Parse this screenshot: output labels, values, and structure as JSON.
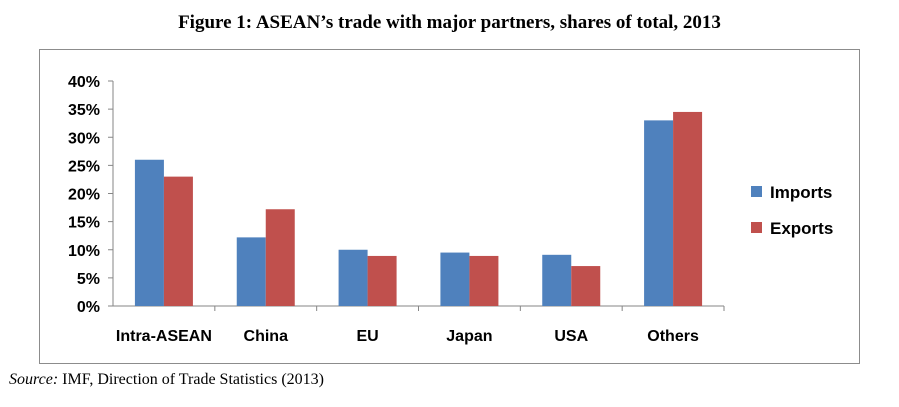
{
  "figure_title": "Figure 1: ASEAN’s trade with major partners, shares of total, 2013",
  "source_label": "Source:",
  "source_text": " IMF, Direction of Trade Statistics (2013)",
  "chart_data": {
    "type": "bar",
    "title": "Figure 1: ASEAN’s trade with major partners, shares of total, 2013",
    "xlabel": "",
    "ylabel": "",
    "categories": [
      "Intra-ASEAN",
      "China",
      "EU",
      "Japan",
      "USA",
      "Others"
    ],
    "series": [
      {
        "name": "Imports",
        "color": "#4f81bd",
        "values": [
          26,
          12.2,
          10,
          9.5,
          9.1,
          33
        ]
      },
      {
        "name": "Exports",
        "color": "#c0504d",
        "values": [
          23,
          17.2,
          8.9,
          8.9,
          7.1,
          34.5
        ]
      }
    ],
    "ylim": [
      0,
      40
    ],
    "yticks": [
      "0%",
      "5%",
      "10%",
      "15%",
      "20%",
      "25%",
      "30%",
      "35%",
      "40%"
    ],
    "grid": false,
    "legend": "right"
  }
}
